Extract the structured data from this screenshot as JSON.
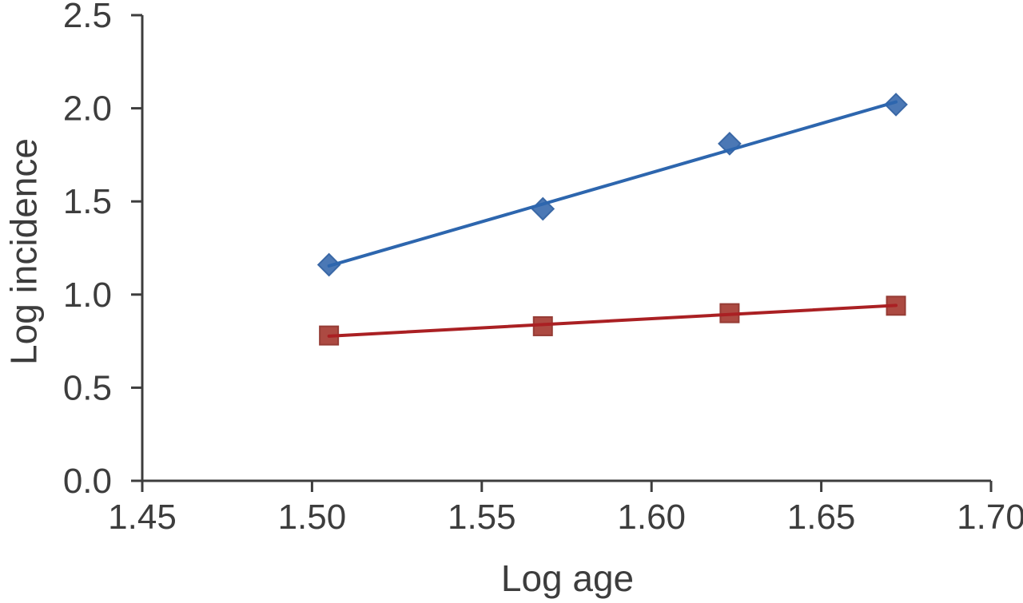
{
  "figure": {
    "background": "#ffffff",
    "text_color": "#3d3d3d",
    "axis_color": "#3d3d3d"
  },
  "chart_data": {
    "type": "line",
    "title": "",
    "xlabel": "Log age",
    "ylabel": "Log incidence",
    "x": [
      1.505,
      1.568,
      1.623,
      1.672
    ],
    "series": [
      {
        "id": "diamond-series",
        "marker": "diamond",
        "line_color": "#2d66ae",
        "marker_fill": "#4b78b5",
        "marker_stroke": "#3a68a6",
        "values": [
          1.16,
          1.46,
          1.81,
          2.02
        ],
        "trendline": true
      },
      {
        "id": "square-series",
        "marker": "square",
        "line_color": "#aa2023",
        "marker_fill": "#ac4a42",
        "marker_stroke": "#963c35",
        "values": [
          0.78,
          0.83,
          0.9,
          0.94
        ],
        "trendline": true
      }
    ],
    "xlim": [
      1.45,
      1.7
    ],
    "ylim": [
      0.0,
      2.5
    ],
    "xticks": [
      "1.45",
      "1.50",
      "1.55",
      "1.60",
      "1.65",
      "1.70"
    ],
    "yticks": [
      "0.0",
      "0.5",
      "1.0",
      "1.5",
      "2.0",
      "2.5"
    ],
    "grid": false,
    "legend": "none"
  }
}
